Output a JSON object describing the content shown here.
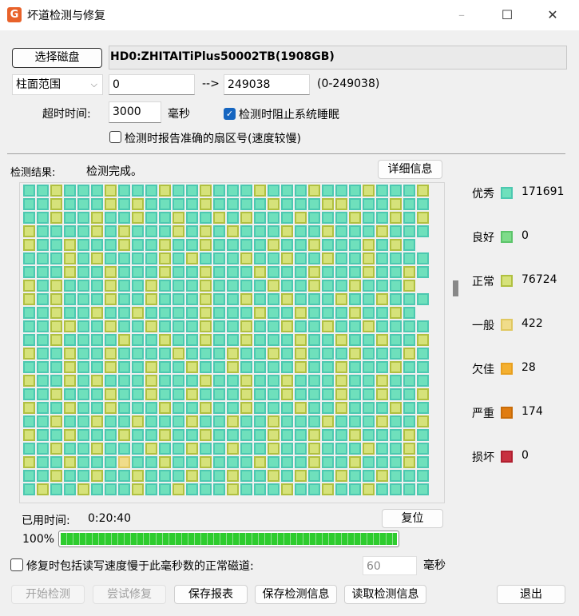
{
  "window": {
    "title": "坏道检测与修复",
    "logo": "G",
    "minimize": "–",
    "maximize": "☐",
    "close": "✕"
  },
  "disk": {
    "select_label": "选择磁盘",
    "name": "HD0:ZHITAITiPlus50002TB(1908GB)"
  },
  "range": {
    "mode": "柱面范围",
    "from": "0",
    "arrow": "-->",
    "to": "249038",
    "hint": "(0-249038)"
  },
  "timeout": {
    "label": "超时时间:",
    "value": "3000",
    "unit": "毫秒"
  },
  "options": {
    "prevent_sleep": {
      "label": "检测时阻止系统睡眠",
      "checked": true
    },
    "report_sector": {
      "label": "检测时报告准确的扇区号(速度较慢)",
      "checked": false
    }
  },
  "result": {
    "label": "检测结果:",
    "status": "检测完成。",
    "details_label": "详细信息"
  },
  "legend": [
    {
      "label": "优秀",
      "count": "171691",
      "color": "#6fe0bc",
      "border": "#4cc8b0"
    },
    {
      "label": "良好",
      "count": "0",
      "color": "#7edc8a",
      "border": "#5cc46a"
    },
    {
      "label": "正常",
      "count": "76724",
      "color": "#d6e27a",
      "border": "#b0c040"
    },
    {
      "label": "一般",
      "count": "422",
      "color": "#f0dc8a",
      "border": "#e0c860"
    },
    {
      "label": "欠佳",
      "count": "28",
      "color": "#f4b030",
      "border": "#e8a020"
    },
    {
      "label": "严重",
      "count": "174",
      "color": "#e07c10",
      "border": "#c86c08"
    },
    {
      "label": "损坏",
      "count": "0",
      "color": "#c83040",
      "border": "#b02030"
    }
  ],
  "grid": [
    "eenееenееenеenеееnеееnеееnеееn",
    "eeneeeneneeeeneeeeneeenneeenee",
    "eeneenееnеenеeneneеenеeeneenen",
    "neeeenenеeeneneneееnеenееeneee",
    "neeneeeneeneeneeeenеenеeеnene",
    "eeeneneeeeneneeeneeneeneeneeee",
    "eeeneeneeeneeneeeneeenееeneene",
    "neneeeneenееeneeeеnеeneeneeen",
    "neneeeneeneeeneeneeneеeneeneee",
    "eeneeneenееeeneeeneeneeenееne",
    "eennееnееneeeneeneeneenеeneeee",
    "eeneeеeneeneeneenеeenееneeneen",
    "neeneeneеeeneeeneeneneeeneeene",
    "eeeneeneenеeneeneeeeneeneeenee",
    "neenenееenеeeneeneeneeeneeneee",
    "eeneeeneeneeneeenееneeeneeneen",
    "neeneeneeeneeneeneeeneeneeenee",
    "eeneeneenеeeneeneeneeeneeeneen",
    "neeneeeneeneeneeeeneenеeneeene",
    "eeneeneeenеeneeneeneeneeeneene",
    "neeneeegeeneeneeeneeeneeneeene",
    "eeneeneeneeeneeneeneneeneeneee",
    "enееneeenееneeeneeeneeneеneeee"
  ],
  "elapsed": {
    "label": "已用时间:",
    "value": "0:20:40"
  },
  "reset_label": "复位",
  "progress": {
    "percent_label": "100%",
    "value": 100
  },
  "slow_repair": {
    "label": "修复时包括读写速度慢于此毫秒数的正常磁道:",
    "checked": false,
    "value": "60",
    "unit": "毫秒"
  },
  "buttons": {
    "start": "开始检测",
    "repair": "尝试修复",
    "save_report": "保存报表",
    "save_info": "保存检测信息",
    "load_info": "读取检测信息",
    "exit": "退出"
  }
}
